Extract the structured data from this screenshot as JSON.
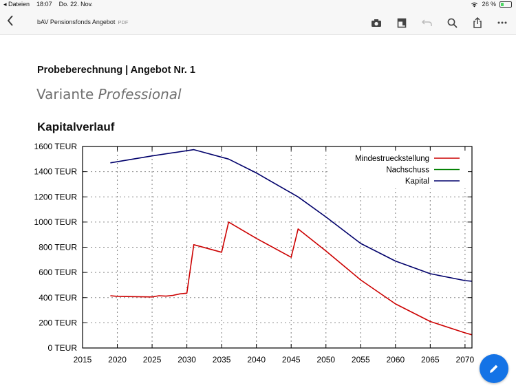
{
  "status_bar": {
    "back_app": "◂ Dateien",
    "time": "18:07",
    "date": "Do. 22. Nov.",
    "battery": "26 %",
    "battery_level": 0.26
  },
  "toolbar": {
    "title": "bAV Pensionsfonds Angebot",
    "file_type": "PDF",
    "icons": [
      "back-icon",
      "camera-icon",
      "bookmark-icon",
      "undo-icon",
      "search-icon",
      "share-icon",
      "more-icon"
    ]
  },
  "document": {
    "heading": "Probeberechnung | Angebot Nr. 1",
    "subheading_plain": "Variante ",
    "subheading_italic": "Professional",
    "chart_title": "Kapitalverlauf"
  },
  "colors": {
    "accent": "#1473e6",
    "mindest": "#cc0000",
    "nachschuss": "#008000",
    "kapital": "#00006b"
  },
  "chart_data": {
    "type": "line",
    "title": "Kapitalverlauf",
    "xlim": [
      2015,
      2071
    ],
    "ylim": [
      0,
      1600
    ],
    "x_ticks": [
      2015,
      2020,
      2025,
      2030,
      2035,
      2040,
      2045,
      2050,
      2055,
      2060,
      2065,
      2070
    ],
    "y_ticks": [
      0,
      200,
      400,
      600,
      800,
      1000,
      1200,
      1400,
      1600
    ],
    "y_tick_labels": [
      "0 TEUR",
      "200 TEUR",
      "400 TEUR",
      "600 TEUR",
      "800 TEUR",
      "1000 TEUR",
      "1200 TEUR",
      "1400 TEUR",
      "1600 TEUR"
    ],
    "grid": true,
    "legend_position": "top-right",
    "series": [
      {
        "name": "Mindestrueckstellung",
        "color": "#cc0000",
        "x": [
          2019,
          2020,
          2025,
          2026,
          2027,
          2028,
          2029,
          2030,
          2031,
          2035,
          2036,
          2040,
          2045,
          2046,
          2050,
          2055,
          2060,
          2065,
          2070,
          2071
        ],
        "y": [
          415,
          410,
          405,
          415,
          412,
          418,
          430,
          435,
          820,
          760,
          1000,
          870,
          720,
          945,
          770,
          540,
          350,
          210,
          120,
          105
        ]
      },
      {
        "name": "Nachschuss",
        "color": "#008000",
        "x": [],
        "y": []
      },
      {
        "name": "Kapital",
        "color": "#00006b",
        "x": [
          2019,
          2025,
          2031,
          2036,
          2040,
          2046,
          2050,
          2055,
          2060,
          2065,
          2070,
          2071
        ],
        "y": [
          1470,
          1525,
          1575,
          1500,
          1390,
          1200,
          1040,
          830,
          690,
          590,
          535,
          530
        ]
      }
    ]
  }
}
